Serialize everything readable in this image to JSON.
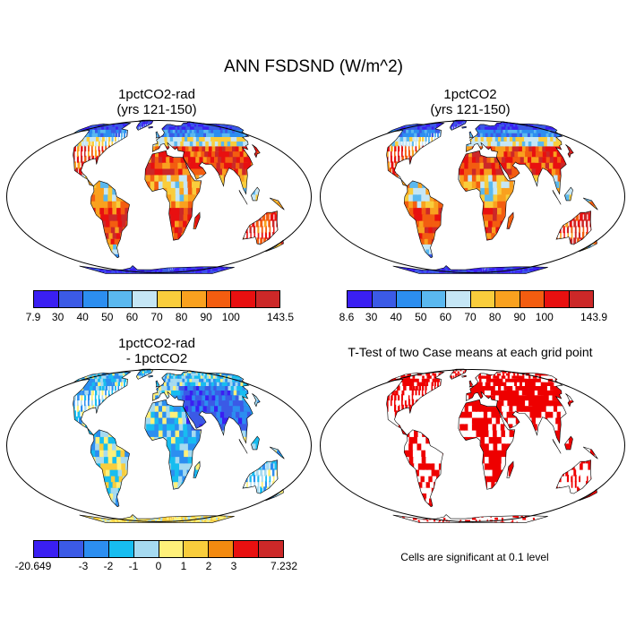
{
  "title": "ANN FSDSND (W/m^2)",
  "panels": [
    {
      "id": "p1",
      "title": "1pctCO2-rad\n(yrs 121-150)",
      "pattern": "abs",
      "colorbar": {
        "labels": [
          "7.9",
          "30",
          "40",
          "50",
          "60",
          "70",
          "80",
          "90",
          "100",
          "143.5"
        ]
      }
    },
    {
      "id": "p2",
      "title": "1pctCO2\n(yrs 121-150)",
      "pattern": "abs",
      "colorbar": {
        "labels": [
          "8.6",
          "30",
          "40",
          "50",
          "60",
          "70",
          "80",
          "90",
          "100",
          "143.9"
        ]
      }
    },
    {
      "id": "p3",
      "title": "1pctCO2-rad\n- 1pctCO2",
      "pattern": "diff",
      "colorbar": {
        "labels": [
          "-20.649",
          "-3",
          "-2",
          "-1",
          "0",
          "1",
          "2",
          "3",
          "7.232"
        ]
      }
    },
    {
      "id": "p4",
      "title": "T-Test of two Case means at each grid point",
      "pattern": "ttest",
      "note": "Cells are significant at 0.1 level"
    }
  ],
  "colors": {
    "abs": [
      "#3a1ff2",
      "#3b5ae6",
      "#2c8ef0",
      "#5ab8ef",
      "#c5e6f5",
      "#f9cd3c",
      "#f9a11f",
      "#f35d10",
      "#e81010",
      "#cc2828"
    ],
    "diff": [
      "#3a1ff2",
      "#3b5ae6",
      "#2c8ef0",
      "#17bdf0",
      "#a6daf0",
      "#fff07a",
      "#f9cd3c",
      "#f38a10",
      "#e81010",
      "#cc2828"
    ],
    "ttest": [
      "#ee0000"
    ]
  }
}
